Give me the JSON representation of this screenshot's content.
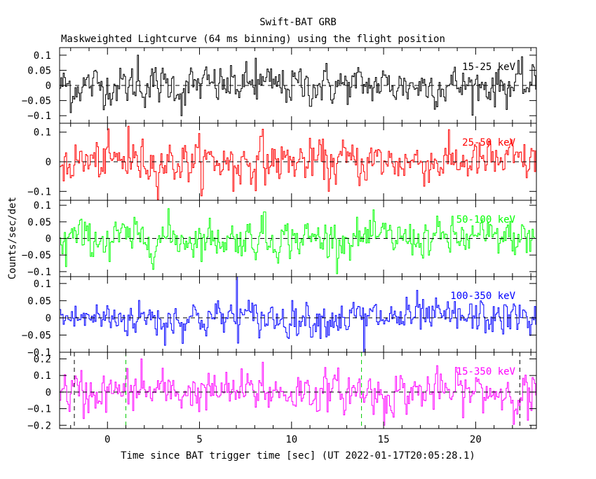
{
  "title": "Swift-BAT GRB",
  "subtitle": "Maskweighted Lightcurve (64 ms binning) using the flight position",
  "ylabel": "Counts/sec/det",
  "xlabel": "Time since BAT trigger time [sec] (UT 2022-01-17T20:05:28.1)",
  "colors": {
    "axes": "#000000",
    "marker_green": "#00cc00"
  },
  "chart_data": {
    "type": "line",
    "binning_s": 0.064,
    "x_range": [
      -2.6,
      23.3
    ],
    "x_ticks": [
      0,
      5,
      10,
      15,
      20
    ],
    "x_tick_labels": [
      "0",
      "5",
      "10",
      "15",
      "20"
    ],
    "noise_style": "noise-like series around 0, individual bins not legible",
    "vertical_markers": [
      {
        "x": -1.8,
        "style": "dashed",
        "color": "#000000",
        "panel": "15-350 keV"
      },
      {
        "x": 1.0,
        "style": "dashed",
        "color": "#00cc00",
        "panel": "15-350 keV"
      },
      {
        "x": 13.8,
        "style": "dashed",
        "color": "#00cc00",
        "panel": "15-350 keV"
      },
      {
        "x": 22.4,
        "style": "dashed",
        "color": "#000000",
        "panel": "15-350 keV"
      }
    ],
    "panels": [
      {
        "label": "15-25 keV",
        "color": "#000000",
        "ylim": [
          -0.125,
          0.125
        ],
        "y_ticks": [
          0.1,
          0.05,
          0,
          -0.05,
          -0.1
        ],
        "y_tick_labels": [
          "0.1",
          "0.05",
          "0",
          "−0.05",
          "−0.1"
        ],
        "noise_sigma": 0.032,
        "spikes": [
          [
            1.6,
            0.1
          ],
          [
            8.0,
            0.09
          ],
          [
            -2.0,
            -0.09
          ],
          [
            4.0,
            -0.1
          ]
        ]
      },
      {
        "label": "25-50 keV",
        "color": "#ff0000",
        "ylim": [
          -0.13,
          0.13
        ],
        "y_ticks": [
          0.1,
          0,
          -0.1
        ],
        "y_tick_labels": [
          "0.1",
          "0",
          "−0.1"
        ],
        "noise_sigma": 0.036,
        "spikes": [
          [
            1.1,
            0.12
          ],
          [
            8.4,
            0.11
          ],
          [
            6.8,
            -0.1
          ],
          [
            12.0,
            -0.1
          ]
        ]
      },
      {
        "label": "50-100 keV",
        "color": "#00ff00",
        "ylim": [
          -0.115,
          0.115
        ],
        "y_ticks": [
          0.1,
          0.05,
          0,
          -0.05,
          -0.1
        ],
        "y_tick_labels": [
          "0.1",
          "0.05",
          "0",
          "−0.05",
          "−0.1"
        ],
        "noise_sigma": 0.028,
        "spikes": [
          [
            3.3,
            0.09
          ],
          [
            8.5,
            0.08
          ],
          [
            -2.3,
            -0.085
          ],
          [
            0.1,
            -0.07
          ]
        ]
      },
      {
        "label": "100-350 keV",
        "color": "#0000ff",
        "ylim": [
          -0.1,
          0.12
        ],
        "y_ticks": [
          0.1,
          0.05,
          0,
          -0.05,
          -0.1
        ],
        "y_tick_labels": [
          "0.1",
          "0.05",
          "0",
          "−0.05",
          "−0.1"
        ],
        "noise_sigma": 0.026,
        "spikes": [
          [
            7.0,
            0.12
          ],
          [
            16.8,
            0.08
          ],
          [
            13.9,
            -0.1
          ],
          [
            3.1,
            -0.08
          ]
        ]
      },
      {
        "label": "15-350 keV",
        "color": "#ff00ff",
        "ylim": [
          -0.22,
          0.24
        ],
        "y_ticks": [
          0.2,
          0.1,
          0,
          -0.1,
          -0.2
        ],
        "y_tick_labels": [
          "0.2",
          "0.1",
          "0",
          "−0.1",
          "−0.2"
        ],
        "noise_sigma": 0.06,
        "spikes": [
          [
            1.8,
            0.2
          ],
          [
            8.4,
            0.18
          ],
          [
            15.0,
            -0.2
          ],
          [
            22.8,
            -0.17
          ],
          [
            -1.3,
            -0.16
          ]
        ]
      }
    ]
  }
}
